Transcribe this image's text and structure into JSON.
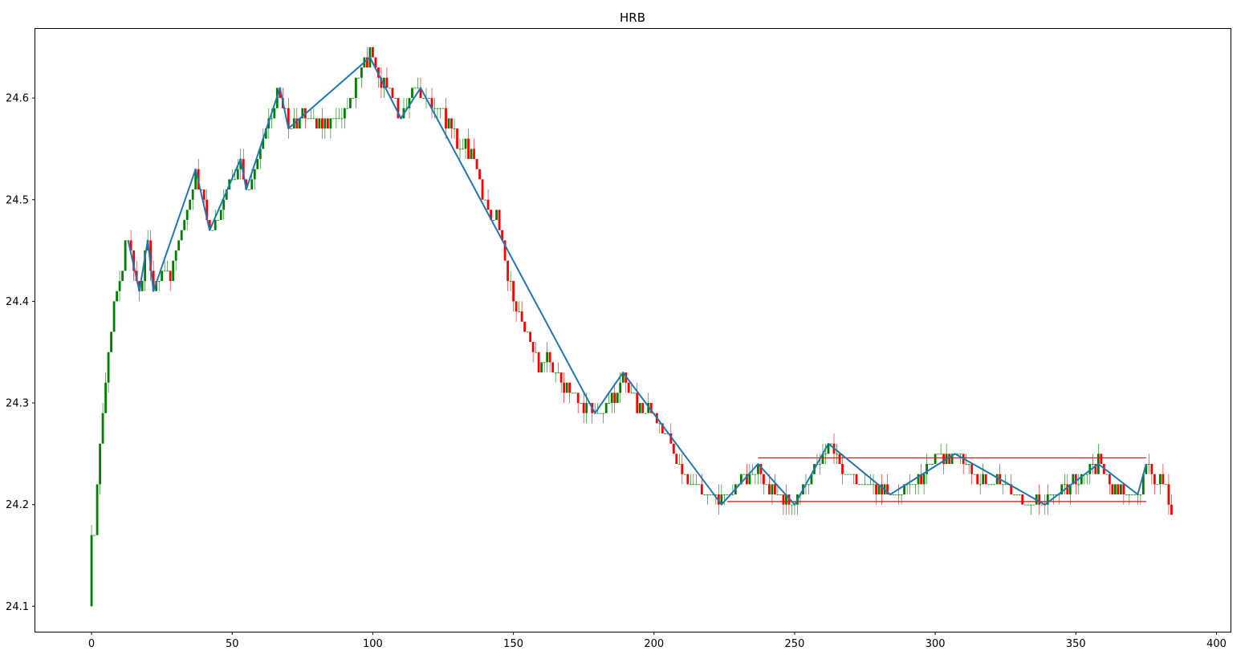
{
  "chart_data": {
    "type": "candlestick",
    "title": "HRB",
    "xlabel": "",
    "ylabel": "",
    "xlim": [
      -20,
      405
    ],
    "ylim": [
      24.075,
      24.668
    ],
    "xticks": [
      0,
      50,
      100,
      150,
      200,
      250,
      300,
      350,
      400
    ],
    "yticks": [
      24.1,
      24.2,
      24.3,
      24.4,
      24.5,
      24.6
    ],
    "ytick_labels": [
      "24.1",
      "24.2",
      "24.3",
      "24.4",
      "24.5",
      "24.6"
    ],
    "grid": false,
    "colors": {
      "up": "#008000",
      "down": "#ff0000",
      "zigzag": "#1f77b4",
      "levels": "#ff0000"
    },
    "price_path": [
      [
        0,
        24.1
      ],
      [
        2,
        24.22
      ],
      [
        4,
        24.29
      ],
      [
        6,
        24.35
      ],
      [
        8,
        24.4
      ],
      [
        10,
        24.42
      ],
      [
        12,
        24.45
      ],
      [
        13,
        24.46
      ],
      [
        15,
        24.43
      ],
      [
        17,
        24.41
      ],
      [
        19,
        24.44
      ],
      [
        20,
        24.46
      ],
      [
        22,
        24.41
      ],
      [
        25,
        24.43
      ],
      [
        28,
        24.42
      ],
      [
        31,
        24.46
      ],
      [
        34,
        24.49
      ],
      [
        37,
        24.53
      ],
      [
        39,
        24.51
      ],
      [
        42,
        24.47
      ],
      [
        45,
        24.48
      ],
      [
        48,
        24.51
      ],
      [
        51,
        24.52
      ],
      [
        53,
        24.54
      ],
      [
        55,
        24.51
      ],
      [
        58,
        24.53
      ],
      [
        61,
        24.56
      ],
      [
        64,
        24.58
      ],
      [
        66,
        24.61
      ],
      [
        68,
        24.59
      ],
      [
        70,
        24.57
      ],
      [
        75,
        24.58
      ],
      [
        80,
        24.575
      ],
      [
        85,
        24.575
      ],
      [
        88,
        24.58
      ],
      [
        92,
        24.6
      ],
      [
        95,
        24.62
      ],
      [
        99,
        24.64
      ],
      [
        102,
        24.62
      ],
      [
        106,
        24.61
      ],
      [
        108,
        24.59
      ],
      [
        110,
        24.58
      ],
      [
        113,
        24.6
      ],
      [
        116,
        24.61
      ],
      [
        119,
        24.6
      ],
      [
        122,
        24.59
      ],
      [
        125,
        24.585
      ],
      [
        128,
        24.57
      ],
      [
        131,
        24.55
      ],
      [
        135,
        24.55
      ],
      [
        138,
        24.52
      ],
      [
        141,
        24.49
      ],
      [
        144,
        24.48
      ],
      [
        147,
        24.44
      ],
      [
        150,
        24.4
      ],
      [
        153,
        24.38
      ],
      [
        156,
        24.36
      ],
      [
        159,
        24.34
      ],
      [
        162,
        24.34
      ],
      [
        165,
        24.33
      ],
      [
        168,
        24.32
      ],
      [
        171,
        24.31
      ],
      [
        175,
        24.3
      ],
      [
        179,
        24.29
      ],
      [
        182,
        24.29
      ],
      [
        185,
        24.3
      ],
      [
        187,
        24.31
      ],
      [
        189,
        24.33
      ],
      [
        192,
        24.31
      ],
      [
        196,
        24.29
      ],
      [
        200,
        24.29
      ],
      [
        204,
        24.27
      ],
      [
        208,
        24.24
      ],
      [
        212,
        24.22
      ],
      [
        216,
        24.21
      ],
      [
        220,
        24.21
      ],
      [
        223,
        24.2
      ],
      [
        226,
        24.21
      ],
      [
        230,
        24.22
      ],
      [
        234,
        24.23
      ],
      [
        237,
        24.24
      ],
      [
        240,
        24.22
      ],
      [
        244,
        24.21
      ],
      [
        248,
        24.205
      ],
      [
        250,
        24.2
      ],
      [
        254,
        24.22
      ],
      [
        258,
        24.24
      ],
      [
        262,
        24.26
      ],
      [
        266,
        24.24
      ],
      [
        270,
        24.23
      ],
      [
        275,
        24.22
      ],
      [
        280,
        24.215
      ],
      [
        284,
        24.21
      ],
      [
        290,
        24.22
      ],
      [
        295,
        24.23
      ],
      [
        300,
        24.24
      ],
      [
        304,
        24.245
      ],
      [
        307,
        24.25
      ],
      [
        312,
        24.23
      ],
      [
        317,
        24.22
      ],
      [
        322,
        24.225
      ],
      [
        328,
        24.21
      ],
      [
        333,
        24.205
      ],
      [
        338,
        24.2
      ],
      [
        343,
        24.21
      ],
      [
        348,
        24.22
      ],
      [
        353,
        24.23
      ],
      [
        358,
        24.24
      ],
      [
        362,
        24.22
      ],
      [
        366,
        24.215
      ],
      [
        371,
        24.21
      ],
      [
        373,
        24.21
      ],
      [
        375,
        24.24
      ],
      [
        378,
        24.225
      ],
      [
        381,
        24.22
      ],
      [
        384,
        24.195
      ]
    ],
    "zigzag": {
      "x": [
        13,
        17,
        20,
        22,
        37,
        42,
        53,
        55,
        67,
        70,
        99,
        110,
        117,
        179,
        189,
        224,
        237,
        250,
        262,
        284,
        307,
        339,
        358,
        372,
        375
      ],
      "y": [
        24.46,
        24.41,
        24.46,
        24.41,
        24.53,
        24.47,
        24.54,
        24.51,
        24.61,
        24.57,
        24.64,
        24.58,
        24.61,
        24.29,
        24.33,
        24.2,
        24.24,
        24.2,
        24.26,
        24.21,
        24.25,
        24.2,
        24.24,
        24.21,
        24.24
      ]
    },
    "levels": [
      {
        "y": 24.246,
        "x_start": 237,
        "x_end": 375
      },
      {
        "y": 24.203,
        "x_start": 226,
        "x_end": 375
      }
    ]
  }
}
